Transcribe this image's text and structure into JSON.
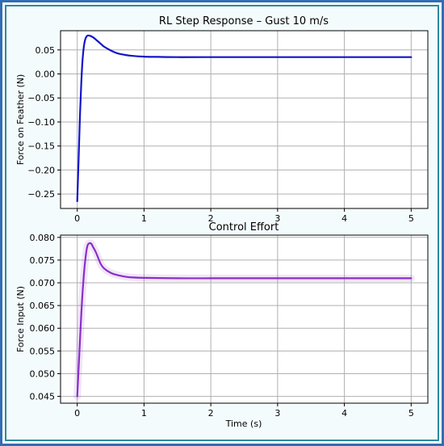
{
  "chart_data": [
    {
      "type": "line",
      "title": "RL Step Response – Gust 10 m/s",
      "xlabel": "",
      "ylabel": "Force on Feather (N)",
      "xlim": [
        -0.25,
        5.25
      ],
      "ylim": [
        -0.28,
        0.09
      ],
      "xticks": [
        0,
        1,
        2,
        3,
        4,
        5
      ],
      "yticks": [
        -0.25,
        -0.2,
        -0.15,
        -0.1,
        -0.05,
        0.0,
        0.05
      ],
      "ytick_labels": [
        "−0.25",
        "−0.20",
        "−0.15",
        "−0.10",
        "−0.05",
        "0.00",
        "0.05"
      ],
      "grid": true,
      "color": "#1414c8",
      "series": [
        {
          "x": [
            0,
            0.02,
            0.04,
            0.06,
            0.08,
            0.1,
            0.12,
            0.14,
            0.16,
            0.2,
            0.25,
            0.3,
            0.35,
            0.4,
            0.5,
            0.6,
            0.7,
            0.8,
            1.0,
            1.2,
            1.5,
            2.0,
            3.0,
            4.0,
            5.0
          ],
          "y": [
            -0.265,
            -0.18,
            -0.09,
            -0.02,
            0.03,
            0.058,
            0.072,
            0.078,
            0.08,
            0.079,
            0.075,
            0.069,
            0.063,
            0.057,
            0.049,
            0.043,
            0.04,
            0.038,
            0.036,
            0.0355,
            0.035,
            0.035,
            0.035,
            0.035,
            0.035
          ]
        }
      ]
    },
    {
      "type": "line",
      "title": "Control Effort",
      "xlabel": "Time (s)",
      "ylabel": "Force Input (N)",
      "xlim": [
        -0.25,
        5.25
      ],
      "ylim": [
        0.0435,
        0.0805
      ],
      "xticks": [
        0,
        1,
        2,
        3,
        4,
        5
      ],
      "yticks": [
        0.045,
        0.05,
        0.055,
        0.06,
        0.065,
        0.07,
        0.075,
        0.08
      ],
      "ytick_labels": [
        "0.045",
        "0.050",
        "0.055",
        "0.060",
        "0.065",
        "0.070",
        "0.075",
        "0.080"
      ],
      "grid": true,
      "color": "#8a2fc8",
      "series": [
        {
          "x": [
            0,
            0.03,
            0.06,
            0.09,
            0.12,
            0.15,
            0.18,
            0.21,
            0.24,
            0.27,
            0.3,
            0.35,
            0.4,
            0.5,
            0.6,
            0.7,
            0.8,
            1.0,
            1.5,
            2.0,
            3.0,
            4.0,
            5.0
          ],
          "y": [
            0.045,
            0.054,
            0.063,
            0.07,
            0.075,
            0.078,
            0.0787,
            0.0786,
            0.0778,
            0.077,
            0.076,
            0.0742,
            0.0732,
            0.0722,
            0.0717,
            0.0714,
            0.0712,
            0.0711,
            0.071,
            0.071,
            0.071,
            0.071,
            0.071
          ]
        }
      ]
    }
  ]
}
